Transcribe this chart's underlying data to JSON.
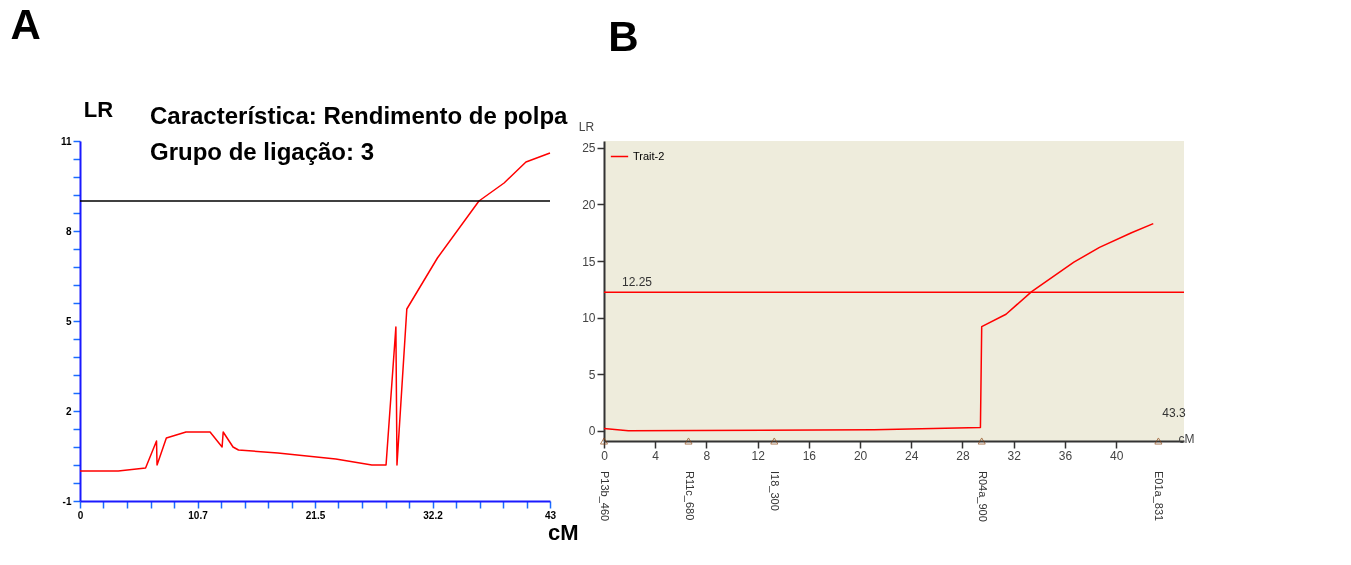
{
  "chart_data": [
    {
      "type": "line",
      "title": "A",
      "xlabel": "cM",
      "ylabel": "LR",
      "annotations": [
        "Característica: Rendimento de polpa",
        "Grupo de ligação: 3"
      ],
      "xlim": [
        0,
        43
      ],
      "ylim": [
        -1,
        11
      ],
      "xticks": [
        0,
        {
          "value": 2.15,
          "label": null
        },
        {
          "value": 4.3,
          "label": null
        },
        {
          "value": 6.45,
          "label": null
        },
        {
          "value": 8.6,
          "label": null
        },
        {
          "value": 10.75,
          "label": "10.7"
        },
        {
          "value": 12.9,
          "label": null
        },
        {
          "value": 15.05,
          "label": null
        },
        {
          "value": 17.2,
          "label": null
        },
        {
          "value": 19.35,
          "label": null
        },
        21.5,
        {
          "value": 23.65,
          "label": null
        },
        {
          "value": 25.8,
          "label": null
        },
        {
          "value": 27.95,
          "label": null
        },
        {
          "value": 30.1,
          "label": null
        },
        {
          "value": 32.25,
          "label": "32.2"
        },
        {
          "value": 34.4,
          "label": null
        },
        {
          "value": 36.55,
          "label": null
        },
        {
          "value": 38.7,
          "label": null
        },
        {
          "value": 40.85,
          "label": null
        },
        43
      ],
      "yticks": [
        -1,
        {
          "value": -0.4,
          "label": null
        },
        {
          "value": 0.2,
          "label": null
        },
        {
          "value": 0.8,
          "label": null
        },
        {
          "value": 1.4,
          "label": null
        },
        2,
        {
          "value": 2.6,
          "label": null
        },
        {
          "value": 3.2,
          "label": null
        },
        {
          "value": 3.8,
          "label": null
        },
        {
          "value": 4.4,
          "label": null
        },
        5,
        {
          "value": 5.6,
          "label": null
        },
        {
          "value": 6.2,
          "label": null
        },
        {
          "value": 6.8,
          "label": null
        },
        {
          "value": 7.4,
          "label": null
        },
        8,
        {
          "value": 8.6,
          "label": null
        },
        {
          "value": 9.2,
          "label": null
        },
        {
          "value": 9.8,
          "label": null
        },
        {
          "value": 10.4,
          "label": null
        },
        11
      ],
      "grid": false,
      "legend": false,
      "series": [
        {
          "color": "#ff0000",
          "x": [
            0,
            3.5,
            6.0,
            7.0,
            7.05,
            7.9,
            9.7,
            11.9,
            13.0,
            13.1,
            14.0,
            14.5,
            18.1,
            23.4,
            26.7,
            28.0,
            28.9,
            29.0,
            29.9,
            32.7,
            36.5,
            38.8,
            40.8,
            43.0
          ],
          "values": [
            0.0,
            0.0,
            0.1,
            1.0,
            0.2,
            1.1,
            1.3,
            1.3,
            0.8,
            1.3,
            0.8,
            0.7,
            0.6,
            0.4,
            0.2,
            0.2,
            4.8,
            0.2,
            5.4,
            7.1,
            9.0,
            9.6,
            10.3,
            10.6
          ]
        }
      ],
      "ref_lines": [
        {
          "axis": "y",
          "value": 9.0,
          "label": null,
          "color": "#000000"
        }
      ]
    },
    {
      "type": "line",
      "title": "B",
      "xlabel": "cM",
      "ylabel": "LR",
      "annotations": [
        "43.3"
      ],
      "xlim": [
        0,
        45.3
      ],
      "ylim": [
        -0.9,
        25.6
      ],
      "xticks": [
        0,
        4,
        8,
        12,
        16,
        20,
        24,
        28,
        32,
        36,
        40
      ],
      "yticks": [
        0,
        5,
        10,
        15,
        20,
        25
      ],
      "grid": false,
      "legend": "top left",
      "series": [
        {
          "name": "Trait-2",
          "color": "#ff0000",
          "x": [
            0,
            1.9,
            21.1,
            29.4,
            29.5,
            31.4,
            33.4,
            36.7,
            38.7,
            41.2,
            42.9
          ],
          "values": [
            0.2,
            0.0,
            0.1,
            0.3,
            9.2,
            10.3,
            12.3,
            14.9,
            16.2,
            17.5,
            18.3
          ]
        },
        {
          "type": "scatter",
          "marker": "triangle",
          "color": "#8b4513",
          "x": [
            0,
            6.6,
            13.3,
            29.5,
            43.3
          ],
          "values": [
            -0.9,
            -0.9,
            -0.9,
            -0.9,
            -0.9
          ],
          "value_labels": [
            "P13b_460",
            "R11c_680",
            "I18_300",
            "R04a_900",
            "E01a_831"
          ]
        }
      ],
      "ref_lines": [
        {
          "axis": "y",
          "value": 12.25,
          "label": "12.25",
          "color": "#ff0000"
        }
      ]
    }
  ]
}
